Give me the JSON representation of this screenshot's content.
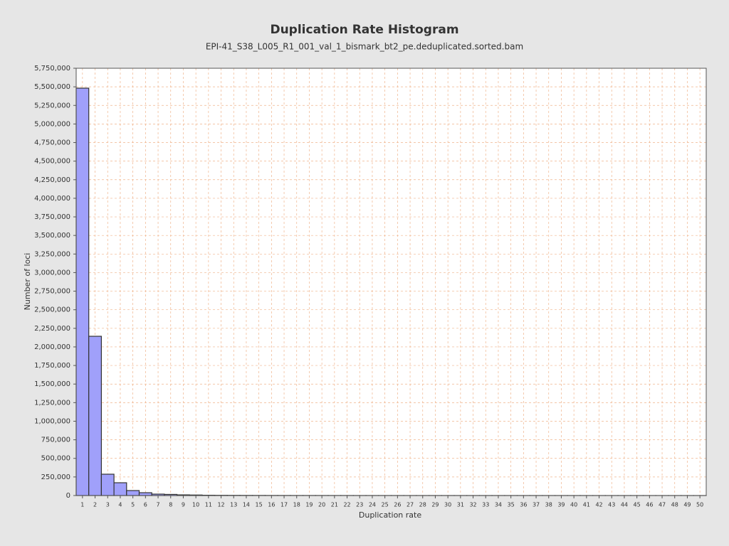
{
  "chart_data": {
    "type": "bar",
    "title": "Duplication Rate Histogram",
    "subtitle": "EPI-41_S38_L005_R1_001_val_1_bismark_bt2_pe.deduplicated.sorted.bam",
    "x_label": "Duplication rate",
    "y_label": "Number of loci",
    "categories": [
      "1",
      "2",
      "3",
      "4",
      "5",
      "6",
      "7",
      "8",
      "9",
      "10",
      "11",
      "12",
      "13",
      "14",
      "15",
      "16",
      "17",
      "18",
      "19",
      "20",
      "21",
      "22",
      "23",
      "24",
      "25",
      "26",
      "27",
      "28",
      "29",
      "30",
      "31",
      "32",
      "33",
      "34",
      "35",
      "36",
      "37",
      "38",
      "39",
      "40",
      "41",
      "42",
      "43",
      "44",
      "45",
      "46",
      "47",
      "48",
      "49",
      "50"
    ],
    "values": [
      5482000,
      2143000,
      287000,
      172000,
      67000,
      38000,
      19000,
      15000,
      9000,
      7000,
      4000,
      3000,
      2500,
      2000,
      1600,
      1300,
      1100,
      900,
      800,
      700,
      600,
      500,
      450,
      400,
      350,
      300,
      280,
      260,
      240,
      220,
      200,
      180,
      170,
      160,
      150,
      140,
      130,
      120,
      110,
      100,
      95,
      90,
      85,
      80,
      75,
      70,
      65,
      60,
      55,
      50
    ],
    "color": "#a0a0fa",
    "ylim": [
      0,
      5750000
    ],
    "yticks": [
      0,
      {
        "value": 250000,
        "label": "250,000"
      },
      {
        "value": 500000,
        "label": "500,000"
      },
      {
        "value": 750000,
        "label": "750,000"
      },
      {
        "value": 1000000,
        "label": "1,000,000"
      },
      {
        "value": 1250000,
        "label": "1,250,000"
      },
      {
        "value": 1500000,
        "label": "1,500,000"
      },
      {
        "value": 1750000,
        "label": "1,750,000"
      },
      {
        "value": 2000000,
        "label": "2,000,000"
      },
      {
        "value": 2250000,
        "label": "2,250,000"
      },
      {
        "value": 2500000,
        "label": "2,500,000"
      },
      {
        "value": 2750000,
        "label": "2,750,000"
      },
      {
        "value": 3000000,
        "label": "3,000,000"
      },
      {
        "value": 3250000,
        "label": "3,250,000"
      },
      {
        "value": 3500000,
        "label": "3,500,000"
      },
      {
        "value": 3750000,
        "label": "3,750,000"
      },
      {
        "value": 4000000,
        "label": "4,000,000"
      },
      {
        "value": 4250000,
        "label": "4,250,000"
      },
      {
        "value": 4500000,
        "label": "4,500,000"
      },
      {
        "value": 4750000,
        "label": "4,750,000"
      },
      {
        "value": 5000000,
        "label": "5,000,000"
      },
      {
        "value": 5250000,
        "label": "5,250,000"
      },
      {
        "value": 5500000,
        "label": "5,500,000"
      },
      {
        "value": 5750000,
        "label": "5,750,000"
      }
    ],
    "grid": true
  }
}
